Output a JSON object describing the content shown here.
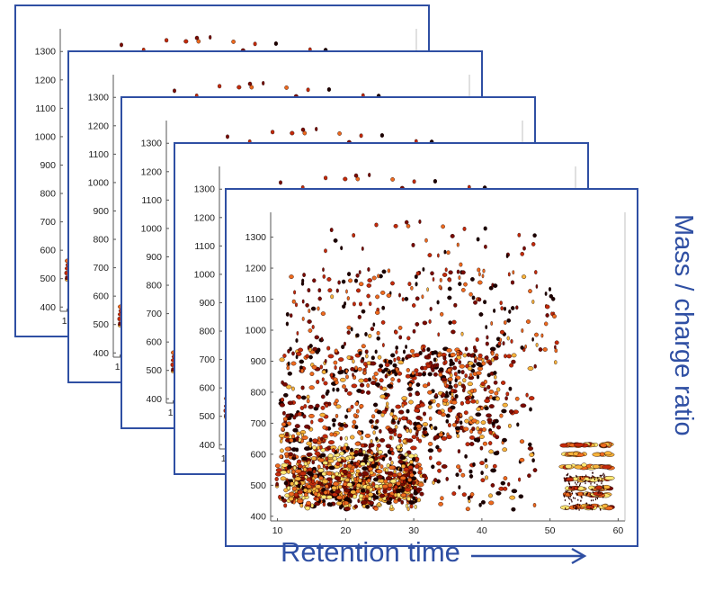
{
  "chart_data": {
    "type": "heatmap",
    "description_layers": 5,
    "xlabel": "Retention time",
    "ylabel": "Mass / charge ratio",
    "xlim": [
      9,
      61
    ],
    "ylim": [
      385,
      1380
    ],
    "x_ticks": [
      10,
      20,
      30,
      40,
      50,
      60
    ],
    "y_ticks": [
      400,
      500,
      600,
      700,
      800,
      900,
      1000,
      1100,
      1200,
      1300
    ],
    "layers": 5,
    "density_regions": [
      {
        "x_range": [
          10,
          30
        ],
        "y_range": [
          420,
          700
        ],
        "intensity": "high"
      },
      {
        "x_range": [
          10,
          40
        ],
        "y_range": [
          700,
          900
        ],
        "intensity": "medium"
      },
      {
        "x_range": [
          20,
          50
        ],
        "y_range": [
          900,
          1100
        ],
        "intensity": "low"
      },
      {
        "x_range": [
          52,
          59
        ],
        "y_range": [
          420,
          640
        ],
        "intensity": "medium"
      }
    ],
    "colormap": [
      "#1a0000",
      "#7a0a00",
      "#c32a0a",
      "#ee6a1e",
      "#f7b33a",
      "#ffe873"
    ],
    "frame_color": "#2f4fa3"
  }
}
